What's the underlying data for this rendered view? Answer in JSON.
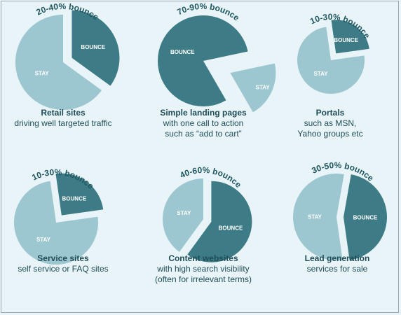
{
  "colors": {
    "stay": "#9cc6d0",
    "bounce": "#3d7c86",
    "bounce_text": "#1f5761",
    "slice_label": "#ffffff"
  },
  "chart_data": [
    {
      "type": "pie",
      "categories": [
        "STAY",
        "BOUNCE"
      ],
      "values": [
        65,
        35
      ],
      "annotation": "20-40% bounce",
      "caption": {
        "title": "Retail sites",
        "lines": [
          "driving well targeted traffic"
        ]
      }
    },
    {
      "type": "pie",
      "categories": [
        "STAY",
        "BOUNCE"
      ],
      "values": [
        20,
        80
      ],
      "annotation": "70-90% bounce",
      "caption": {
        "title": "Simple landing pages",
        "lines": [
          "with one call to action",
          "such as “add to cart”"
        ]
      }
    },
    {
      "type": "pie",
      "categories": [
        "STAY",
        "BOUNCE"
      ],
      "values": [
        75,
        25
      ],
      "annotation": "10-30% bounce",
      "caption": {
        "title": "Portals",
        "lines": [
          "such as MSN,",
          "Yahoo groups etc"
        ]
      }
    },
    {
      "type": "pie",
      "categories": [
        "STAY",
        "BOUNCE"
      ],
      "values": [
        75,
        25
      ],
      "annotation": "10-30% bounce",
      "caption": {
        "title": "Service sites",
        "lines": [
          "self service or FAQ sites"
        ]
      }
    },
    {
      "type": "pie",
      "categories": [
        "STAY",
        "BOUNCE"
      ],
      "values": [
        40,
        60
      ],
      "annotation": "40-60% bounce",
      "caption": {
        "title": "Content websites",
        "lines": [
          "with high search visibility",
          "(often for irrelevant terms)"
        ]
      }
    },
    {
      "type": "pie",
      "categories": [
        "STAY",
        "BOUNCE"
      ],
      "values": [
        55,
        45
      ],
      "annotation": "30-50% bounce",
      "caption": {
        "title": "Lead generation",
        "lines": [
          "services for sale"
        ]
      }
    }
  ]
}
